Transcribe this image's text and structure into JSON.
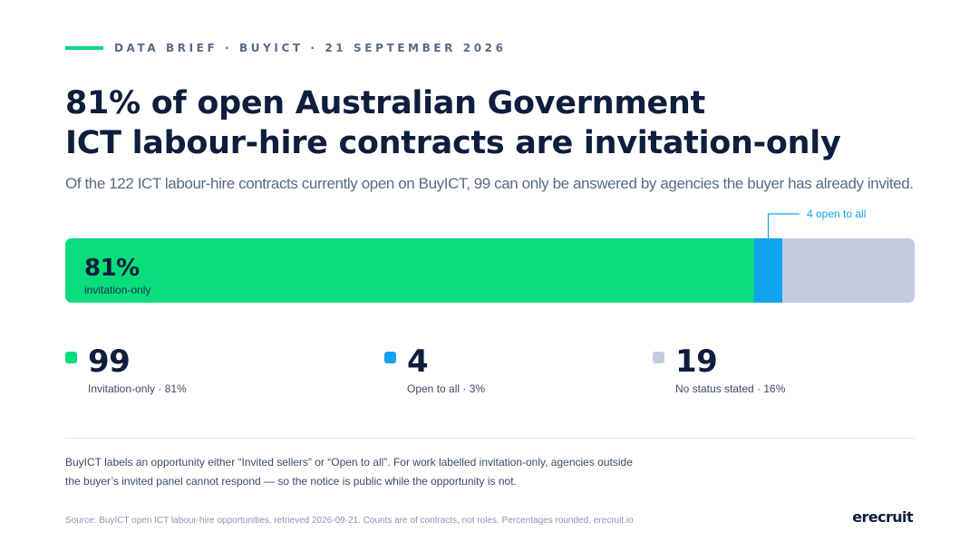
{
  "eyebrow": "DATA BRIEF · BUYICT · 21 SEPTEMBER 2026",
  "title": {
    "line1": "81% of open Australian Government",
    "line2": "ICT labour-hire contracts are invitation-only"
  },
  "subtitle": "Of the 122 ICT labour-hire contracts currently open on BuyICT, 99 can only be answered by agencies the buyer has already invited.",
  "chart_data": {
    "type": "bar",
    "orientation": "horizontal-stacked",
    "total": 122,
    "segments": [
      {
        "key": "invitation_only",
        "value": 99,
        "color": "#08dc7c"
      },
      {
        "key": "open_to_all",
        "value": 4,
        "color": "#10a3ee"
      },
      {
        "key": "no_status",
        "value": 19,
        "color": "#c5cce0"
      }
    ],
    "bar_label": {
      "value": "81%",
      "text": "invitation-only"
    },
    "annotation": "4 open to all"
  },
  "stats": [
    {
      "number": "99",
      "label": "Invitation-only · 81%",
      "color": "#08dc7c"
    },
    {
      "number": "4",
      "label": "Open to all · 3%",
      "color": "#10a3ee"
    },
    {
      "number": "19",
      "label": "No status stated · 16%",
      "color": "#c5cce0"
    }
  ],
  "note": {
    "line1": "BuyICT labels an opportunity either “Invited sellers” or “Open to all”. For work labelled invitation-only, agencies outside",
    "line2": "the buyer’s invited panel cannot respond — so the notice is public while the opportunity is not."
  },
  "source": "Source: BuyICT open ICT labour-hire opportunities, retrieved 2026-09-21. Counts are of contracts, not roles. Percentages rounded. erecruit.io",
  "brand": "erecruit"
}
